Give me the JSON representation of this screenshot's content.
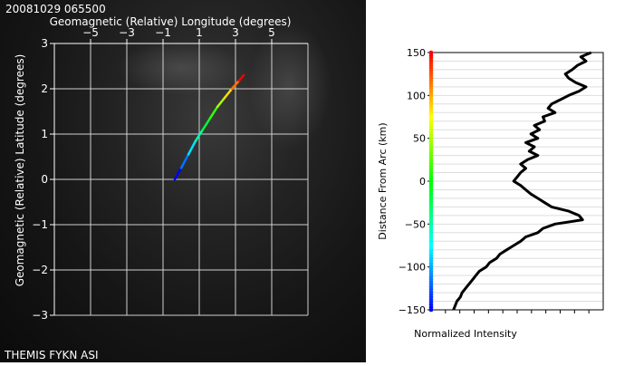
{
  "chart_data": [
    {
      "type": "line",
      "timestamp": "20081029 065500",
      "xlabel": "Geomagnetic (Relative) Longitude (degrees)",
      "ylabel": "Geomagnetic (Relative) Latitude (degrees)",
      "x_ticks": [
        "−5",
        "−3",
        "−1",
        "1",
        "3",
        "5"
      ],
      "y_ticks": [
        "3",
        "2",
        "1",
        "0",
        "−1",
        "−2",
        "−3"
      ],
      "xlim": [
        -7,
        7
      ],
      "ylim": [
        -3,
        3
      ],
      "grid": true,
      "caption": "THEMIS FYKN ASI",
      "series": [
        {
          "x": [
            -0.35,
            0.0,
            0.4,
            0.8,
            1.2,
            1.6,
            2.0,
            2.4,
            2.8,
            3.2,
            3.45
          ],
          "y": [
            0.0,
            0.25,
            0.55,
            0.85,
            1.1,
            1.35,
            1.6,
            1.8,
            2.0,
            2.18,
            2.3
          ]
        }
      ]
    },
    {
      "type": "line",
      "xlabel": "Normalized Intensity",
      "ylabel": "Distance From Arc (km)",
      "y_ticks": [
        "150",
        "100",
        "50",
        "0",
        "−50",
        "−100",
        "−150"
      ],
      "ylim": [
        -150,
        150
      ],
      "grid": true,
      "series": [
        {
          "d": [
            150,
            145,
            140,
            135,
            130,
            125,
            120,
            115,
            110,
            105,
            100,
            95,
            90,
            85,
            80,
            75,
            70,
            65,
            60,
            55,
            50,
            45,
            40,
            35,
            30,
            25,
            20,
            15,
            10,
            5,
            0,
            -5,
            -10,
            -15,
            -20,
            -25,
            -30,
            -35,
            -40,
            -45,
            -50,
            -55,
            -60,
            -65,
            -70,
            -75,
            -80,
            -85,
            -90,
            -95,
            -100,
            -105,
            -110,
            -115,
            -120,
            -125,
            -130,
            -135,
            -140,
            -145,
            -150
          ],
          "intensity": [
            0.93,
            0.87,
            0.9,
            0.85,
            0.82,
            0.78,
            0.8,
            0.84,
            0.9,
            0.86,
            0.8,
            0.75,
            0.7,
            0.68,
            0.72,
            0.65,
            0.66,
            0.6,
            0.63,
            0.58,
            0.62,
            0.55,
            0.6,
            0.57,
            0.62,
            0.56,
            0.52,
            0.55,
            0.52,
            0.5,
            0.48,
            0.52,
            0.55,
            0.58,
            0.62,
            0.66,
            0.7,
            0.8,
            0.86,
            0.88,
            0.72,
            0.65,
            0.62,
            0.55,
            0.52,
            0.48,
            0.44,
            0.4,
            0.38,
            0.34,
            0.32,
            0.28,
            0.26,
            0.24,
            0.22,
            0.2,
            0.18,
            0.17,
            0.15,
            0.14,
            0.13
          ]
        }
      ]
    }
  ]
}
